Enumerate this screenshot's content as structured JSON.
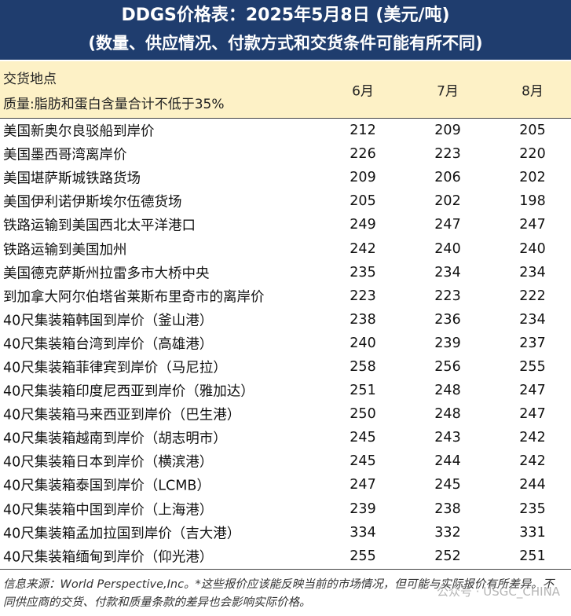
{
  "header": {
    "title": "DDGS价格表：2025年5月8日 (美元/吨)",
    "subtitle": "(数量、供应情况、付款方式和交货条件可能有所不同)"
  },
  "table": {
    "location_label": "交货地点",
    "quality_label": "质量:脂肪和蛋白含量合计不低于35%",
    "months": [
      "6月",
      "7月",
      "8月"
    ],
    "rows": [
      [
        "美国新奥尔良驳船到岸价",
        212,
        209,
        205
      ],
      [
        "美国墨西哥湾离岸价",
        226,
        223,
        220
      ],
      [
        "美国堪萨斯城铁路货场",
        209,
        206,
        202
      ],
      [
        "美国伊利诺伊斯埃尔伍德货场",
        205,
        202,
        198
      ],
      [
        "铁路运输到美国西北太平洋港口",
        249,
        247,
        247
      ],
      [
        "铁路运输到美国加州",
        242,
        240,
        240
      ],
      [
        "美国德克萨斯州拉雷多市大桥中央",
        235,
        234,
        234
      ],
      [
        "到加拿大阿尔伯塔省莱斯布里奇市的离岸价",
        223,
        223,
        222
      ],
      [
        "40尺集装箱韩国到岸价（釜山港）",
        238,
        236,
        234
      ],
      [
        "40尺集装箱台湾到岸价（高雄港）",
        240,
        239,
        237
      ],
      [
        "40尺集装箱菲律宾到岸价（马尼拉）",
        258,
        256,
        255
      ],
      [
        "40尺集装箱印度尼西亚到岸价（雅加达）",
        251,
        248,
        247
      ],
      [
        "40尺集装箱马来西亚到岸价（巴生港）",
        250,
        248,
        247
      ],
      [
        "40尺集装箱越南到岸价（胡志明市）",
        245,
        243,
        242
      ],
      [
        "40尺集装箱日本到岸价（横滨港）",
        245,
        244,
        242
      ],
      [
        "40尺集装箱泰国到岸价（LCMB）",
        247,
        245,
        244
      ],
      [
        "40尺集装箱中国到岸价（上海港）",
        239,
        238,
        235
      ],
      [
        "40尺集装箱孟加拉国到岸价（吉大港）",
        334,
        332,
        331
      ],
      [
        "40尺集装箱缅甸到岸价（仰光港）",
        255,
        252,
        251
      ]
    ]
  },
  "footnote": "信息来源：World Perspective,Inc。*这些报价应该能反映当前的市场情况，但可能与实际报价有所差异。不同供应商的交货、付款和质量条款的差异也会影响实际价格。",
  "watermark": "公众号 · USGC_CHINA"
}
